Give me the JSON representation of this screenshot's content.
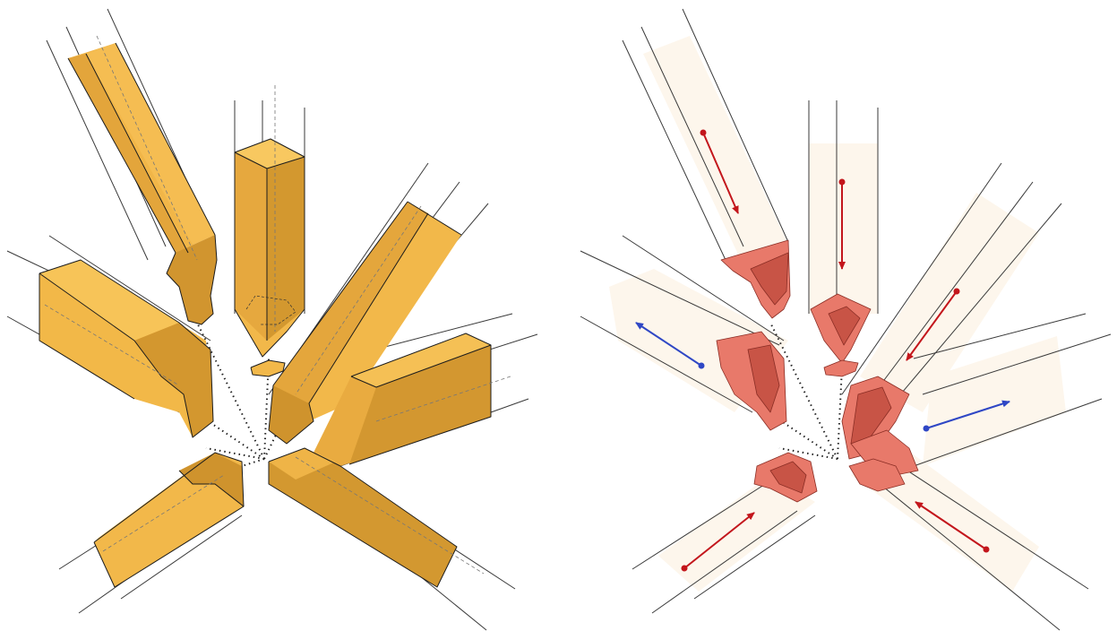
{
  "figure": {
    "left_panel": "assembled-joint-members",
    "right_panel": "member-insertion-directions"
  },
  "colors": {
    "timber_light": "#f4b949",
    "timber_mid": "#e3a53b",
    "timber_dark": "#c48a2a",
    "ghost_fill": "#fdf6ec",
    "contact_face": "#e8796a",
    "contact_face_dark": "#c85446",
    "arrow_red": "#c3161c",
    "arrow_blue": "#2f47c5"
  },
  "arrows": [
    {
      "member": "upper-left",
      "color": "red"
    },
    {
      "member": "top-center",
      "color": "red"
    },
    {
      "member": "left",
      "color": "blue"
    },
    {
      "member": "upper-right",
      "color": "red"
    },
    {
      "member": "right",
      "color": "blue"
    },
    {
      "member": "lower-left",
      "color": "red"
    },
    {
      "member": "lower-right",
      "color": "red"
    }
  ]
}
